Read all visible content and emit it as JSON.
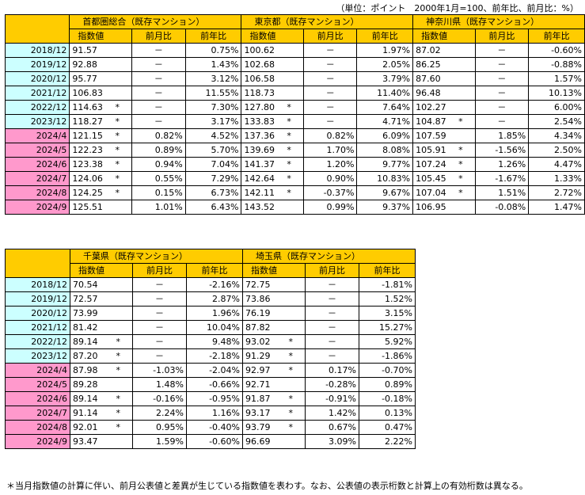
{
  "unit_note": "（単位：ポイント　2000年1月=100、前年比、前月比：%）",
  "table1": {
    "groups": [
      {
        "name": "首都圏総合（既存マンション）",
        "cols": [
          "指数値",
          "前月比",
          "前年比"
        ]
      },
      {
        "name": "東京都（既存マンション）",
        "cols": [
          "指数値",
          "前月比",
          "前年比"
        ]
      },
      {
        "name": "神奈川県（既存マンション）",
        "cols": [
          "指数値",
          "前月比",
          "前年比"
        ]
      }
    ],
    "rows": [
      {
        "date": "2018/12",
        "cells": [
          [
            "91.57",
            ""
          ],
          [
            "－"
          ],
          [
            "0.75%"
          ],
          [
            "100.62",
            ""
          ],
          [
            "－"
          ],
          [
            "1.97%"
          ],
          [
            "87.02",
            ""
          ],
          [
            "－"
          ],
          [
            "-0.60%"
          ]
        ]
      },
      {
        "date": "2019/12",
        "cells": [
          [
            "92.88",
            ""
          ],
          [
            "－"
          ],
          [
            "1.43%"
          ],
          [
            "102.68",
            ""
          ],
          [
            "－"
          ],
          [
            "2.05%"
          ],
          [
            "86.25",
            ""
          ],
          [
            "－"
          ],
          [
            "-0.88%"
          ]
        ]
      },
      {
        "date": "2020/12",
        "cells": [
          [
            "95.77",
            ""
          ],
          [
            "－"
          ],
          [
            "3.12%"
          ],
          [
            "106.58",
            ""
          ],
          [
            "－"
          ],
          [
            "3.79%"
          ],
          [
            "87.60",
            ""
          ],
          [
            "－"
          ],
          [
            "1.57%"
          ]
        ]
      },
      {
        "date": "2021/12",
        "cells": [
          [
            "106.83",
            ""
          ],
          [
            "－"
          ],
          [
            "11.55%"
          ],
          [
            "118.73",
            ""
          ],
          [
            "－"
          ],
          [
            "11.40%"
          ],
          [
            "96.48",
            ""
          ],
          [
            "－"
          ],
          [
            "10.13%"
          ]
        ]
      },
      {
        "date": "2022/12",
        "cells": [
          [
            "114.63",
            "*"
          ],
          [
            "－"
          ],
          [
            "7.30%"
          ],
          [
            "127.80",
            "*"
          ],
          [
            "－"
          ],
          [
            "7.64%"
          ],
          [
            "102.27",
            ""
          ],
          [
            "－"
          ],
          [
            "6.00%"
          ]
        ]
      },
      {
        "date": "2023/12",
        "cells": [
          [
            "118.27",
            "*"
          ],
          [
            "－"
          ],
          [
            "3.17%"
          ],
          [
            "133.83",
            "*"
          ],
          [
            "－"
          ],
          [
            "4.71%"
          ],
          [
            "104.87",
            "*"
          ],
          [
            "－"
          ],
          [
            "2.54%"
          ]
        ]
      },
      {
        "date": "2024/4",
        "cells": [
          [
            "121.15",
            "*"
          ],
          [
            "0.82%"
          ],
          [
            "4.52%"
          ],
          [
            "137.36",
            "*"
          ],
          [
            "0.82%"
          ],
          [
            "6.09%"
          ],
          [
            "107.59",
            ""
          ],
          [
            "1.85%"
          ],
          [
            "4.34%"
          ]
        ]
      },
      {
        "date": "2024/5",
        "cells": [
          [
            "122.23",
            "*"
          ],
          [
            "0.89%"
          ],
          [
            "5.70%"
          ],
          [
            "139.69",
            "*"
          ],
          [
            "1.70%"
          ],
          [
            "8.08%"
          ],
          [
            "105.91",
            "*"
          ],
          [
            "-1.56%"
          ],
          [
            "2.50%"
          ]
        ]
      },
      {
        "date": "2024/6",
        "cells": [
          [
            "123.38",
            "*"
          ],
          [
            "0.94%"
          ],
          [
            "7.04%"
          ],
          [
            "141.37",
            "*"
          ],
          [
            "1.20%"
          ],
          [
            "9.77%"
          ],
          [
            "107.24",
            "*"
          ],
          [
            "1.26%"
          ],
          [
            "4.47%"
          ]
        ]
      },
      {
        "date": "2024/7",
        "cells": [
          [
            "124.06",
            "*"
          ],
          [
            "0.55%"
          ],
          [
            "7.29%"
          ],
          [
            "142.64",
            "*"
          ],
          [
            "0.90%"
          ],
          [
            "10.83%"
          ],
          [
            "105.45",
            "*"
          ],
          [
            "-1.67%"
          ],
          [
            "1.33%"
          ]
        ]
      },
      {
        "date": "2024/8",
        "cells": [
          [
            "124.25",
            "*"
          ],
          [
            "0.15%"
          ],
          [
            "6.73%"
          ],
          [
            "142.11",
            "*"
          ],
          [
            "-0.37%"
          ],
          [
            "9.67%"
          ],
          [
            "107.04",
            "*"
          ],
          [
            "1.51%"
          ],
          [
            "2.72%"
          ]
        ]
      },
      {
        "date": "2024/9",
        "cells": [
          [
            "125.51",
            ""
          ],
          [
            "1.01%"
          ],
          [
            "6.43%"
          ],
          [
            "143.52",
            ""
          ],
          [
            "0.99%"
          ],
          [
            "9.37%"
          ],
          [
            "106.95",
            ""
          ],
          [
            "-0.08%"
          ],
          [
            "1.47%"
          ]
        ]
      }
    ]
  },
  "table2": {
    "groups": [
      {
        "name": "千葉県（既存マンション）",
        "cols": [
          "指数値",
          "前月比",
          "前年比"
        ]
      },
      {
        "name": "埼玉県（既存マンション）",
        "cols": [
          "指数値",
          "前月比",
          "前年比"
        ]
      }
    ],
    "rows": [
      {
        "date": "2018/12",
        "cells": [
          [
            "70.54",
            ""
          ],
          [
            "－"
          ],
          [
            "-2.16%"
          ],
          [
            "72.75",
            ""
          ],
          [
            "－"
          ],
          [
            "-1.81%"
          ]
        ]
      },
      {
        "date": "2019/12",
        "cells": [
          [
            "72.57",
            ""
          ],
          [
            "－"
          ],
          [
            "2.87%"
          ],
          [
            "73.86",
            ""
          ],
          [
            "－"
          ],
          [
            "1.52%"
          ]
        ]
      },
      {
        "date": "2020/12",
        "cells": [
          [
            "73.99",
            ""
          ],
          [
            "－"
          ],
          [
            "1.96%"
          ],
          [
            "76.19",
            ""
          ],
          [
            "－"
          ],
          [
            "3.15%"
          ]
        ]
      },
      {
        "date": "2021/12",
        "cells": [
          [
            "81.42",
            ""
          ],
          [
            "－"
          ],
          [
            "10.04%"
          ],
          [
            "87.82",
            ""
          ],
          [
            "－"
          ],
          [
            "15.27%"
          ]
        ]
      },
      {
        "date": "2022/12",
        "cells": [
          [
            "89.14",
            "*"
          ],
          [
            "－"
          ],
          [
            "9.48%"
          ],
          [
            "93.02",
            "*"
          ],
          [
            "－"
          ],
          [
            "5.92%"
          ]
        ]
      },
      {
        "date": "2023/12",
        "cells": [
          [
            "87.20",
            "*"
          ],
          [
            "－"
          ],
          [
            "-2.18%"
          ],
          [
            "91.29",
            "*"
          ],
          [
            "－"
          ],
          [
            "-1.86%"
          ]
        ]
      },
      {
        "date": "2024/4",
        "cells": [
          [
            "87.98",
            "*"
          ],
          [
            "-1.03%"
          ],
          [
            "-2.04%"
          ],
          [
            "92.97",
            "*"
          ],
          [
            "0.17%"
          ],
          [
            "-0.70%"
          ]
        ]
      },
      {
        "date": "2024/5",
        "cells": [
          [
            "89.28",
            ""
          ],
          [
            "1.48%"
          ],
          [
            "-0.66%"
          ],
          [
            "92.71",
            ""
          ],
          [
            "-0.28%"
          ],
          [
            "0.89%"
          ]
        ]
      },
      {
        "date": "2024/6",
        "cells": [
          [
            "89.14",
            "*"
          ],
          [
            "-0.16%"
          ],
          [
            "-0.95%"
          ],
          [
            "91.87",
            "*"
          ],
          [
            "-0.91%"
          ],
          [
            "-0.18%"
          ]
        ]
      },
      {
        "date": "2024/7",
        "cells": [
          [
            "91.14",
            "*"
          ],
          [
            "2.24%"
          ],
          [
            "1.16%"
          ],
          [
            "93.17",
            "*"
          ],
          [
            "1.42%"
          ],
          [
            "0.13%"
          ]
        ]
      },
      {
        "date": "2024/8",
        "cells": [
          [
            "92.01",
            "*"
          ],
          [
            "0.95%"
          ],
          [
            "-0.40%"
          ],
          [
            "93.79",
            "*"
          ],
          [
            "0.67%"
          ],
          [
            "0.47%"
          ]
        ]
      },
      {
        "date": "2024/9",
        "cells": [
          [
            "93.47",
            ""
          ],
          [
            "1.59%"
          ],
          [
            "-0.60%"
          ],
          [
            "96.69",
            ""
          ],
          [
            "3.09%"
          ],
          [
            "2.22%"
          ]
        ]
      }
    ]
  },
  "footnote": "＊当月指数値の計算に伴い、前月公表値と差異が生じている指数値を表わす。なお、公表値の表示桁数と計算上の有効桁数は異なる。",
  "colors": {
    "header": "#ffcc00",
    "date_annual": "#ccffff",
    "date_monthly": "#ff99cc"
  }
}
